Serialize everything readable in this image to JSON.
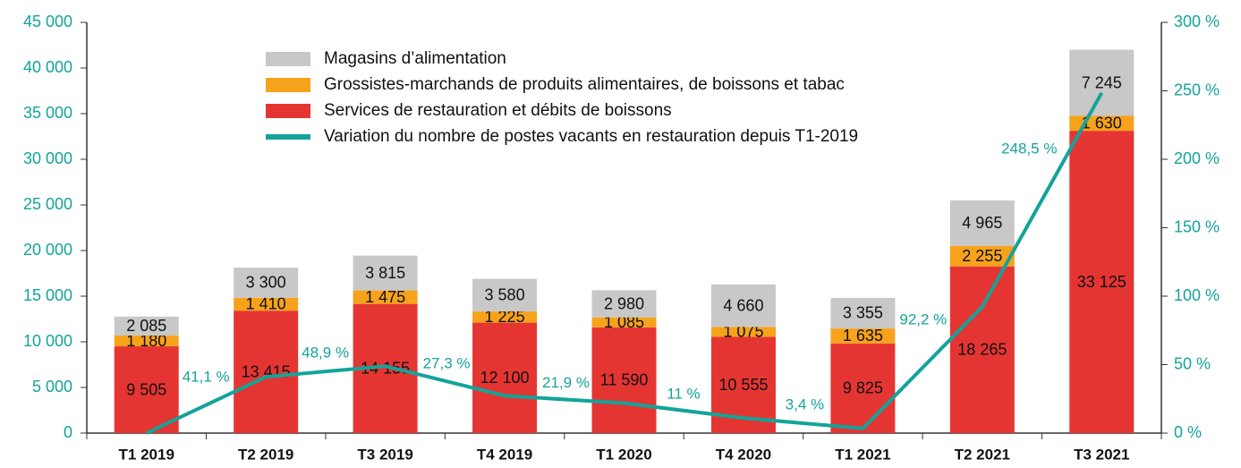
{
  "chart_data": {
    "type": "bar",
    "categories": [
      "T1 2019",
      "T2 2019",
      "T3 2019",
      "T4 2019",
      "T1 2020",
      "T4 2020",
      "T1 2021",
      "T2 2021",
      "T3 2021"
    ],
    "series": [
      {
        "name": "Services de restauration et débits de boissons",
        "color": "#e53532",
        "values": [
          9505,
          13415,
          14155,
          12100,
          11590,
          10555,
          9825,
          18265,
          33125
        ],
        "value_labels": [
          "9 505",
          "13 415",
          "14 155",
          "12 100",
          "11 590",
          "10 555",
          "9 825",
          "18 265",
          "33 125"
        ]
      },
      {
        "name": "Grossistes-marchands de produits alimentaires, de boissons et tabac",
        "color": "#f7a21b",
        "values": [
          1180,
          1410,
          1475,
          1225,
          1085,
          1075,
          1635,
          2255,
          1630
        ],
        "value_labels": [
          "1 180",
          "1 410",
          "1 475",
          "1 225",
          "1 085",
          "1 075",
          "1 635",
          "2 255",
          "1 630"
        ]
      },
      {
        "name": "Magasins d’alimentation",
        "color": "#c8c8c8",
        "values": [
          2085,
          3300,
          3815,
          3580,
          2980,
          4660,
          3355,
          4965,
          7245
        ],
        "value_labels": [
          "2 085",
          "3 300",
          "3 815",
          "3 580",
          "2 980",
          "4 660",
          "3 355",
          "4 965",
          "7 245"
        ]
      },
      {
        "name": "Variation du nombre de postes vacants en restauration depuis T1-2019",
        "color": "#14a39a",
        "type": "line",
        "axis": "y2",
        "values": [
          0,
          41.1,
          48.9,
          27.3,
          21.9,
          11,
          3.4,
          92.2,
          248.5
        ],
        "value_labels": [
          null,
          "41,1 %",
          "48,9 %",
          "27,3 %",
          "21,9 %",
          "11 %",
          "3,4 %",
          "92,2 %",
          "248,5 %"
        ]
      }
    ],
    "stacked": true,
    "ylim": [
      0,
      45000
    ],
    "yticks": [
      0,
      {
        "value": 5000,
        "label": "5 000"
      },
      {
        "value": 10000,
        "label": "10 000"
      },
      {
        "value": 15000,
        "label": "15 000"
      },
      {
        "value": 20000,
        "label": "20 000"
      },
      {
        "value": 25000,
        "label": "25 000"
      },
      {
        "value": 30000,
        "label": "30 000"
      },
      {
        "value": 35000,
        "label": "35 000"
      },
      {
        "value": 40000,
        "label": "40 000"
      },
      {
        "value": 45000,
        "label": "45 000"
      }
    ],
    "y2lim": [
      0,
      300
    ],
    "y2ticks": [
      {
        "value": 0,
        "label": "0 %"
      },
      {
        "value": 50,
        "label": "50 %"
      },
      {
        "value": 100,
        "label": "100 %"
      },
      {
        "value": 150,
        "label": "150 %"
      },
      {
        "value": 200,
        "label": "200 %"
      },
      {
        "value": 250,
        "label": "250 %"
      },
      {
        "value": 300,
        "label": "300 %"
      }
    ],
    "grid": false
  }
}
